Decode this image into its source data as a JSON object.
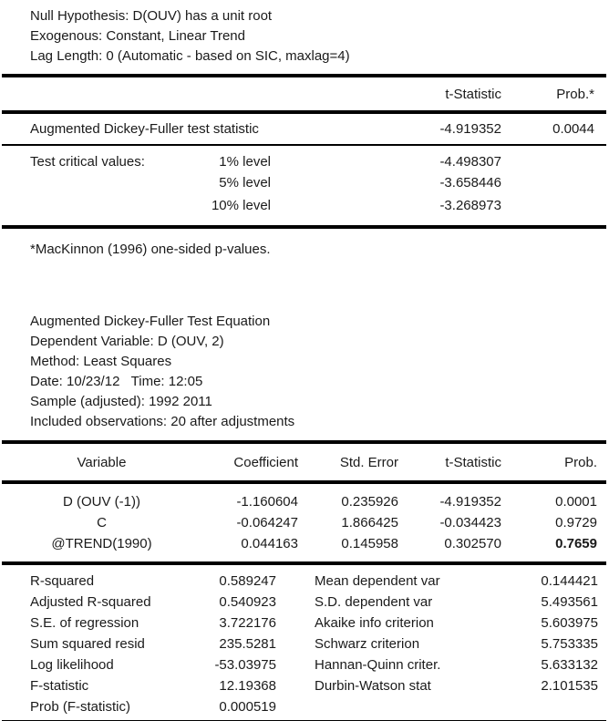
{
  "header_lines": [
    "Null Hypothesis: D(OUV) has a unit root",
    "Exogenous: Constant, Linear Trend",
    "Lag Length: 0 (Automatic - based on SIC, maxlag=4)"
  ],
  "adf_table": {
    "col_headers": {
      "t_stat": "t-Statistic",
      "prob": "Prob.*"
    },
    "stat_row": {
      "label": "Augmented Dickey-Fuller test statistic",
      "t_stat": "-4.919352",
      "prob": "0.0044"
    },
    "critical_values": {
      "label": "Test critical values:",
      "rows": [
        {
          "level": "1% level",
          "value": "-4.498307"
        },
        {
          "level": "5% level",
          "value": "-3.658446"
        },
        {
          "level": "10% level",
          "value": "-3.268973"
        }
      ]
    },
    "footnote": "*MacKinnon (1996) one-sided p-values."
  },
  "equation_info": [
    "Augmented Dickey-Fuller Test Equation",
    "Dependent Variable: D (OUV, 2)",
    "Method: Least Squares",
    "Date: 10/23/12   Time: 12:05",
    "Sample (adjusted): 1992 2011",
    "Included observations: 20 after adjustments"
  ],
  "regression_table": {
    "headers": {
      "variable": "Variable",
      "coefficient": "Coefficient",
      "std_error": "Std. Error",
      "t_stat": "t-Statistic",
      "prob": "Prob."
    },
    "rows": [
      {
        "variable": "D (OUV (-1))",
        "coefficient": "-1.160604",
        "std_error": "0.235926",
        "t_stat": "-4.919352",
        "prob": "0.0001"
      },
      {
        "variable": "C",
        "coefficient": "-0.064247",
        "std_error": "1.866425",
        "t_stat": "-0.034423",
        "prob": "0.9729"
      },
      {
        "variable": "@TREND(1990)",
        "coefficient": "0.044163",
        "std_error": "0.145958",
        "t_stat": "0.302570",
        "prob": "0.7659"
      }
    ]
  },
  "summary_stats": {
    "left": [
      {
        "label": "R-squared",
        "value": "0.589247"
      },
      {
        "label": "Adjusted R-squared",
        "value": "0.540923"
      },
      {
        "label": "S.E. of regression",
        "value": "3.722176"
      },
      {
        "label": "Sum squared resid",
        "value": "235.5281"
      },
      {
        "label": "Log likelihood",
        "value": "-53.03975"
      },
      {
        "label": "F-statistic",
        "value": "12.19368"
      },
      {
        "label": "Prob (F-statistic)",
        "value": "0.000519"
      }
    ],
    "right": [
      {
        "label": "Mean dependent var",
        "value": "0.144421"
      },
      {
        "label": "S.D. dependent var",
        "value": "5.493561"
      },
      {
        "label": "Akaike info criterion",
        "value": "5.603975"
      },
      {
        "label": "Schwarz criterion",
        "value": "5.753335"
      },
      {
        "label": "Hannan-Quinn criter.",
        "value": "5.633132"
      },
      {
        "label": "Durbin-Watson stat",
        "value": "2.101535"
      }
    ]
  },
  "colors": {
    "background": "#ffffff",
    "text": "#1a1a1a",
    "rule": "#000000"
  }
}
